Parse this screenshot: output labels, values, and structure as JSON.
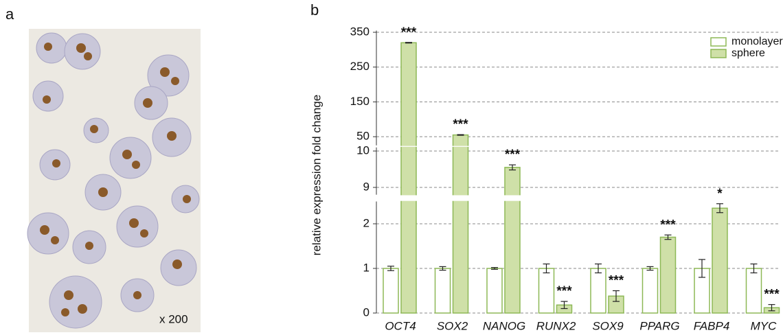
{
  "panel_a": {
    "label": "a",
    "magnification": "x 200"
  },
  "chart_data": {
    "type": "bar",
    "panel_label": "b",
    "y_label": "relative  expression fold change",
    "categories": [
      "OCT4",
      "SOX2",
      "NANOG",
      "RUNX2",
      "SOX9",
      "PPARG",
      "FABP4",
      "MYC"
    ],
    "series": [
      {
        "name": "monolayer",
        "color": "#8db856",
        "fill": "#ffffff",
        "values": [
          1,
          1,
          1,
          1,
          1,
          1,
          1,
          1
        ],
        "errors": [
          0.05,
          0.04,
          0.02,
          0.1,
          0.1,
          0.04,
          0.2,
          0.1
        ]
      },
      {
        "name": "sphere",
        "color": "#8db856",
        "fill": "#cfe0a8",
        "values": [
          320,
          55,
          9.55,
          0.18,
          0.38,
          1.7,
          2.35,
          0.12
        ],
        "errors": [
          1,
          1,
          0.07,
          0.08,
          0.12,
          0.05,
          0.1,
          0.07
        ]
      }
    ],
    "significance": [
      "***",
      "***",
      "***",
      "***",
      "***",
      "***",
      "*",
      "***"
    ],
    "axis_segments": [
      {
        "ylim": [
          25,
          355
        ],
        "yticks": [
          50,
          150,
          250,
          350
        ]
      },
      {
        "ylim": [
          8.8,
          10.1
        ],
        "yticks": [
          9,
          10
        ]
      },
      {
        "ylim": [
          0,
          2.5
        ],
        "yticks": [
          0,
          1,
          2
        ]
      }
    ],
    "grid": true,
    "legend": "upper right"
  }
}
